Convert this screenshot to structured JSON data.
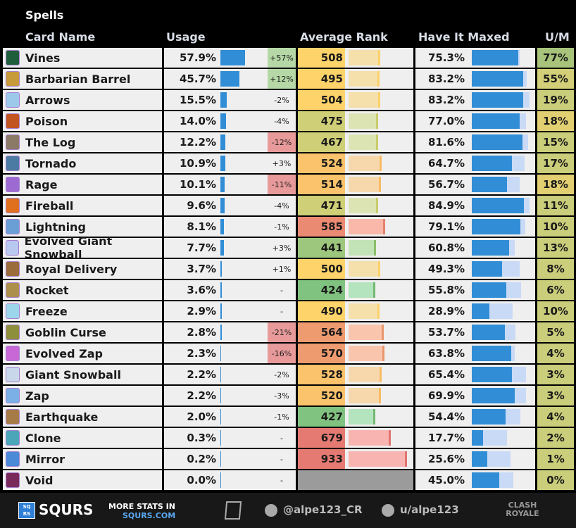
{
  "title": "Spells",
  "headers": {
    "name": "Card Name",
    "usage": "Usage",
    "rank": "Average Rank",
    "maxed": "Have It Maxed",
    "um": "U/M"
  },
  "colors": {
    "usage_bar": "#318ed6",
    "maxed_bar": "#318ed6",
    "maxed_bar_bg": "#c9daf6",
    "positive_change": "#b5d8a6",
    "negative_change": "#e89a9a",
    "no_rank": "#9b9b9b"
  },
  "rows": [
    {
      "name": "Vines",
      "usage": "57.9%",
      "usage_val": 57.9,
      "change": "+57%",
      "rank": "508",
      "maxed": "75.3%",
      "maxed_val": 75.3,
      "maxed_bg_val": 78,
      "um": "77%"
    },
    {
      "name": "Barbarian Barrel",
      "usage": "45.7%",
      "usage_val": 45.7,
      "change": "+12%",
      "rank": "495",
      "maxed": "83.2%",
      "maxed_val": 83.2,
      "maxed_bg_val": 89,
      "um": "55%"
    },
    {
      "name": "Arrows",
      "usage": "15.5%",
      "usage_val": 15.5,
      "change": "-2%",
      "rank": "504",
      "maxed": "83.2%",
      "maxed_val": 83.2,
      "maxed_bg_val": 94,
      "um": "19%"
    },
    {
      "name": "Poison",
      "usage": "14.0%",
      "usage_val": 14.0,
      "change": "-4%",
      "rank": "475",
      "maxed": "77.0%",
      "maxed_val": 77.0,
      "maxed_bg_val": 88,
      "um": "18%"
    },
    {
      "name": "The Log",
      "usage": "12.2%",
      "usage_val": 12.2,
      "change": "-12%",
      "rank": "467",
      "maxed": "81.6%",
      "maxed_val": 81.6,
      "maxed_bg_val": 91,
      "um": "15%"
    },
    {
      "name": "Tornado",
      "usage": "10.9%",
      "usage_val": 10.9,
      "change": "+3%",
      "rank": "524",
      "maxed": "64.7%",
      "maxed_val": 64.7,
      "maxed_bg_val": 85,
      "um": "17%"
    },
    {
      "name": "Rage",
      "usage": "10.1%",
      "usage_val": 10.1,
      "change": "-11%",
      "rank": "514",
      "maxed": "56.7%",
      "maxed_val": 56.7,
      "maxed_bg_val": 78,
      "um": "18%"
    },
    {
      "name": "Fireball",
      "usage": "9.6%",
      "usage_val": 9.6,
      "change": "-4%",
      "rank": "471",
      "maxed": "84.9%",
      "maxed_val": 84.9,
      "maxed_bg_val": 94,
      "um": "11%"
    },
    {
      "name": "Lightning",
      "usage": "8.1%",
      "usage_val": 8.1,
      "change": "-1%",
      "rank": "585",
      "maxed": "79.1%",
      "maxed_val": 79.1,
      "maxed_bg_val": 87,
      "um": "10%"
    },
    {
      "name": "Evolved Giant Snowball",
      "usage": "7.7%",
      "usage_val": 7.7,
      "change": "+3%",
      "rank": "441",
      "maxed": "60.8%",
      "maxed_val": 60.8,
      "maxed_bg_val": 70,
      "um": "13%"
    },
    {
      "name": "Royal Delivery",
      "usage": "3.7%",
      "usage_val": 3.7,
      "change": "+1%",
      "rank": "500",
      "maxed": "49.3%",
      "maxed_val": 49.3,
      "maxed_bg_val": 78,
      "um": "8%"
    },
    {
      "name": "Rocket",
      "usage": "3.6%",
      "usage_val": 3.6,
      "change": "-",
      "rank": "424",
      "maxed": "55.8%",
      "maxed_val": 55.8,
      "maxed_bg_val": 80,
      "um": "6%"
    },
    {
      "name": "Freeze",
      "usage": "2.9%",
      "usage_val": 2.9,
      "change": "-",
      "rank": "490",
      "maxed": "28.9%",
      "maxed_val": 28.9,
      "maxed_bg_val": 66,
      "um": "10%"
    },
    {
      "name": "Goblin Curse",
      "usage": "2.8%",
      "usage_val": 2.8,
      "change": "-21%",
      "rank": "564",
      "maxed": "53.7%",
      "maxed_val": 53.7,
      "maxed_bg_val": 71,
      "um": "5%"
    },
    {
      "name": "Evolved Zap",
      "usage": "2.3%",
      "usage_val": 2.3,
      "change": "-16%",
      "rank": "570",
      "maxed": "63.8%",
      "maxed_val": 63.8,
      "maxed_bg_val": 69,
      "um": "4%"
    },
    {
      "name": "Giant Snowball",
      "usage": "2.2%",
      "usage_val": 2.2,
      "change": "-2%",
      "rank": "528",
      "maxed": "65.4%",
      "maxed_val": 65.4,
      "maxed_bg_val": 88,
      "um": "3%"
    },
    {
      "name": "Zap",
      "usage": "2.2%",
      "usage_val": 2.2,
      "change": "-3%",
      "rank": "520",
      "maxed": "69.9%",
      "maxed_val": 69.9,
      "maxed_bg_val": 88,
      "um": "3%"
    },
    {
      "name": "Earthquake",
      "usage": "2.0%",
      "usage_val": 2.0,
      "change": "-1%",
      "rank": "427",
      "maxed": "54.4%",
      "maxed_val": 54.4,
      "maxed_bg_val": 79,
      "um": "4%"
    },
    {
      "name": "Clone",
      "usage": "0.3%",
      "usage_val": 0.3,
      "change": "-",
      "rank": "679",
      "maxed": "17.7%",
      "maxed_val": 17.7,
      "maxed_bg_val": 57,
      "um": "2%"
    },
    {
      "name": "Mirror",
      "usage": "0.2%",
      "usage_val": 0.2,
      "change": "-",
      "rank": "933",
      "maxed": "25.6%",
      "maxed_val": 25.6,
      "maxed_bg_val": 63,
      "um": "1%"
    },
    {
      "name": "Void",
      "usage": "0.0%",
      "usage_val": 0.0,
      "change": "-",
      "rank": "",
      "maxed": "45.0%",
      "maxed_val": 45.0,
      "maxed_bg_val": 67,
      "um": "0%"
    }
  ],
  "footer": {
    "brand": "SQURS",
    "logo_text": "SQ RS",
    "more_stats": "MORE STATS IN",
    "site": "SQURS.COM",
    "twitter": "@alpe123_CR",
    "reddit": "u/alpe123",
    "game_logo": "CLASH ROYALE"
  }
}
